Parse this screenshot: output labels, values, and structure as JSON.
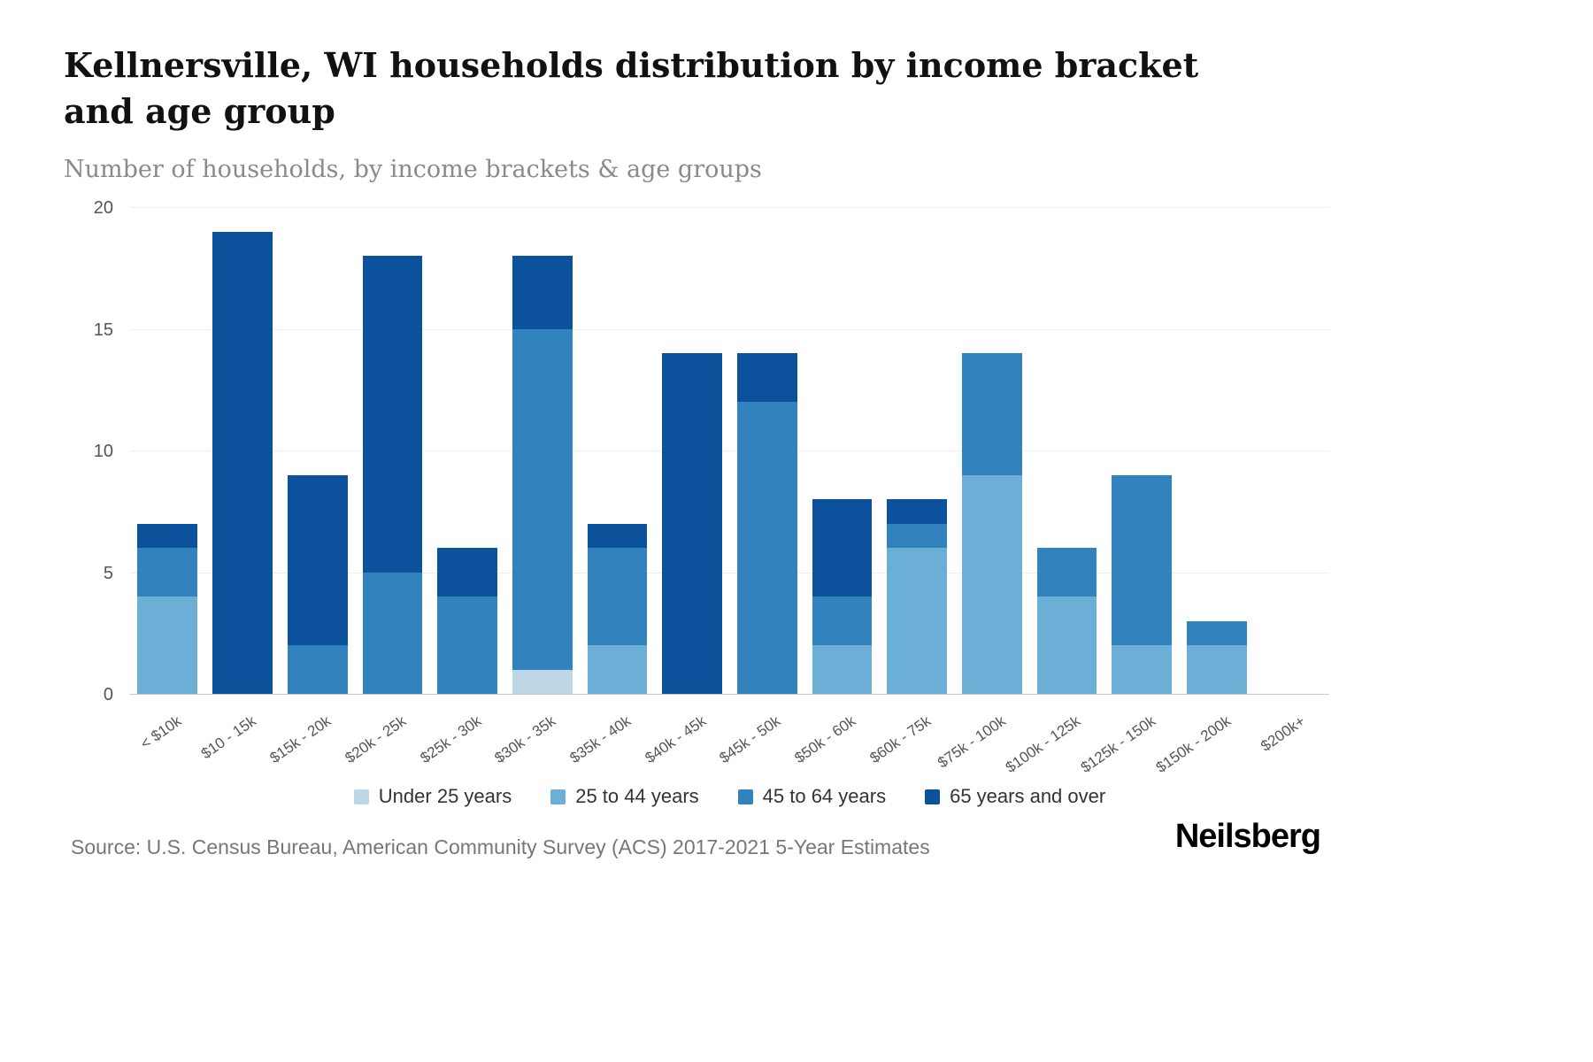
{
  "header": {
    "title": "Kellnersville, WI households distribution by income bracket and age group",
    "subtitle": "Number of households, by income brackets & age groups"
  },
  "chart_data": {
    "type": "bar",
    "stacked": true,
    "title": "Kellnersville, WI households distribution by income bracket and age group",
    "subtitle": "Number of households, by income brackets & age groups",
    "categories": [
      "< $10k",
      "$10 - 15k",
      "$15k - 20k",
      "$20k - 25k",
      "$25k - 30k",
      "$30k - 35k",
      "$35k - 40k",
      "$40k - 45k",
      "$45k - 50k",
      "$50k - 60k",
      "$60k - 75k",
      "$75k - 100k",
      "$100k - 125k",
      "$125k - 150k",
      "$150k - 200k",
      "$200k+"
    ],
    "series": [
      {
        "name": "Under 25 years",
        "color": "#bdd7e7",
        "values": [
          0,
          0,
          0,
          0,
          0,
          1,
          0,
          0,
          0,
          0,
          0,
          0,
          0,
          0,
          0,
          0
        ]
      },
      {
        "name": "25 to 44 years",
        "color": "#6baed6",
        "values": [
          4,
          0,
          0,
          0,
          0,
          0,
          2,
          0,
          0,
          2,
          6,
          9,
          4,
          2,
          2,
          0
        ]
      },
      {
        "name": "45 to 64 years",
        "color": "#3182bd",
        "values": [
          2,
          0,
          2,
          5,
          4,
          14,
          4,
          0,
          12,
          2,
          1,
          5,
          2,
          7,
          1,
          0
        ]
      },
      {
        "name": "65 years and over",
        "color": "#0b519c",
        "values": [
          1,
          19,
          7,
          13,
          2,
          3,
          1,
          14,
          2,
          4,
          1,
          0,
          0,
          0,
          0,
          0
        ]
      }
    ],
    "ylim": [
      0,
      20
    ],
    "yticks": [
      0,
      5,
      10,
      15,
      20
    ],
    "grid": true,
    "legend_position": "bottom"
  },
  "footer": {
    "source": "Source: U.S. Census Bureau, American Community Survey (ACS) 2017-2021 5-Year Estimates",
    "brand": "Neilsberg"
  }
}
